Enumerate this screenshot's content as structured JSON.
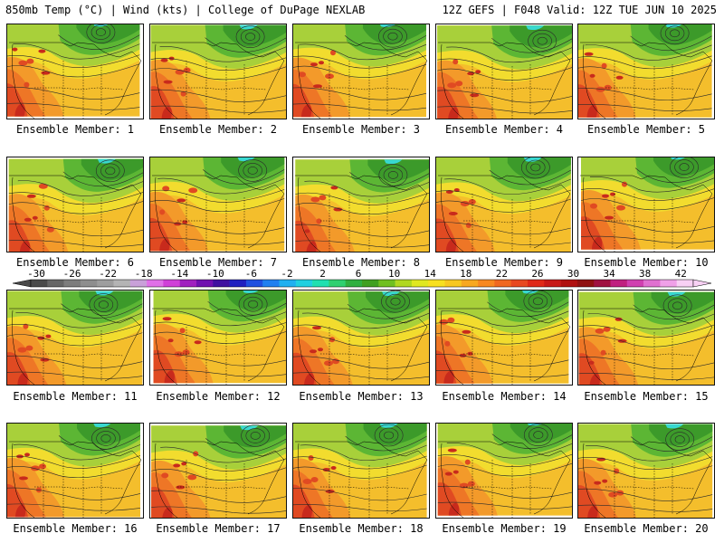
{
  "header": {
    "left": "850mb Temp (°C) | Wind (kts) | College of DuPage NEXLAB",
    "right": "12Z GEFS | F048 Valid: 12Z TUE JUN 10 2025"
  },
  "members": [
    {
      "label": "Ensemble Member: 1"
    },
    {
      "label": "Ensemble Member: 2"
    },
    {
      "label": "Ensemble Member: 3"
    },
    {
      "label": "Ensemble Member: 4"
    },
    {
      "label": "Ensemble Member: 5"
    },
    {
      "label": "Ensemble Member: 6"
    },
    {
      "label": "Ensemble Member: 7"
    },
    {
      "label": "Ensemble Member: 8"
    },
    {
      "label": "Ensemble Member: 9"
    },
    {
      "label": "Ensemble Member: 10"
    },
    {
      "label": "Ensemble Member: 11"
    },
    {
      "label": "Ensemble Member: 12"
    },
    {
      "label": "Ensemble Member: 13"
    },
    {
      "label": "Ensemble Member: 14"
    },
    {
      "label": "Ensemble Member: 15"
    },
    {
      "label": "Ensemble Member: 16"
    },
    {
      "label": "Ensemble Member: 17"
    },
    {
      "label": "Ensemble Member: 18"
    },
    {
      "label": "Ensemble Member: 19"
    },
    {
      "label": "Ensemble Member: 20"
    }
  ],
  "colorbar": {
    "tick_labels": [
      "-30",
      "-26",
      "-22",
      "-18",
      "-14",
      "-10",
      "-6",
      "-2",
      "2",
      "6",
      "10",
      "14",
      "18",
      "22",
      "26",
      "30",
      "34",
      "38",
      "42"
    ],
    "colors": [
      "#4a4a4a",
      "#666666",
      "#7d7d7d",
      "#8e8e8e",
      "#9e9e9e",
      "#b4b4b4",
      "#c9a0d9",
      "#e070e8",
      "#d040d8",
      "#a020c0",
      "#7010b0",
      "#4010a0",
      "#2020c0",
      "#2050e0",
      "#2080f0",
      "#20b0f0",
      "#20d0e0",
      "#20e0b0",
      "#30d070",
      "#30b040",
      "#40a020",
      "#70c020",
      "#b0d820",
      "#e0e820",
      "#f8e020",
      "#f8c820",
      "#f8a820",
      "#f88820",
      "#f06820",
      "#e84820",
      "#e02818",
      "#c81818",
      "#b01010",
      "#901010",
      "#a01040",
      "#c02080",
      "#d040b0",
      "#e070d0",
      "#f0a0e8",
      "#f8d0f4"
    ]
  },
  "map_colors": {
    "green_dark": "#3c9a2a",
    "green": "#5cb634",
    "yellow_green": "#a8d03a",
    "yellow": "#f2dc2e",
    "gold": "#f4be2c",
    "orange": "#f39a2a",
    "dark_orange": "#ee7626",
    "red": "#e04a22",
    "deep_red": "#c82a1c",
    "cyan": "#38d8d0"
  }
}
